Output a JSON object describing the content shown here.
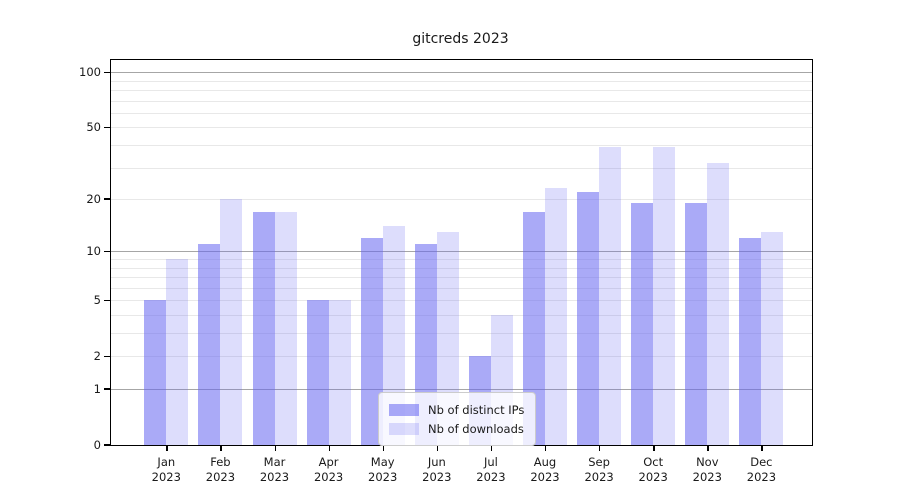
{
  "title": "gitcreds 2023",
  "chart_data": {
    "type": "bar",
    "title": "gitcreds 2023",
    "categories": [
      "Jan",
      "Feb",
      "Mar",
      "Apr",
      "May",
      "Jun",
      "Jul",
      "Aug",
      "Sep",
      "Oct",
      "Nov",
      "Dec"
    ],
    "x_year_label": "2023",
    "series": [
      {
        "name": "Nb of distinct IPs",
        "color": "rgba(100,100,240,0.55)",
        "values": [
          5,
          11,
          17,
          5,
          12,
          11,
          2,
          17,
          22,
          19,
          19,
          12
        ]
      },
      {
        "name": "Nb of downloads",
        "color": "rgba(100,100,240,0.22)",
        "values": [
          9,
          20,
          17,
          5,
          14,
          13,
          4,
          23,
          39,
          39,
          32,
          13
        ]
      }
    ],
    "y_axis": {
      "scale": "log1p",
      "tick_labels": [
        "0",
        "1",
        "2",
        "5",
        "10",
        "20",
        "50",
        "100"
      ],
      "tick_values": [
        0,
        1,
        2,
        5,
        10,
        20,
        50,
        100
      ],
      "major_gridlines": [
        1,
        10,
        100
      ],
      "minor_gridlines": [
        2,
        3,
        4,
        5,
        6,
        7,
        8,
        9,
        20,
        30,
        40,
        50,
        60,
        70,
        80,
        90
      ],
      "ylim": [
        0,
        117
      ]
    },
    "xlabel": "",
    "ylabel": "",
    "grid": true,
    "legend_position": "inside-bottom-center"
  },
  "colors": {
    "bar_dark": "rgba(100,100,240,0.55)",
    "bar_light": "rgba(100,100,240,0.22)",
    "grid_major": "#a6a6a6",
    "grid_minor": "#e8e8e8",
    "axis": "#000000",
    "background": "#ffffff"
  }
}
